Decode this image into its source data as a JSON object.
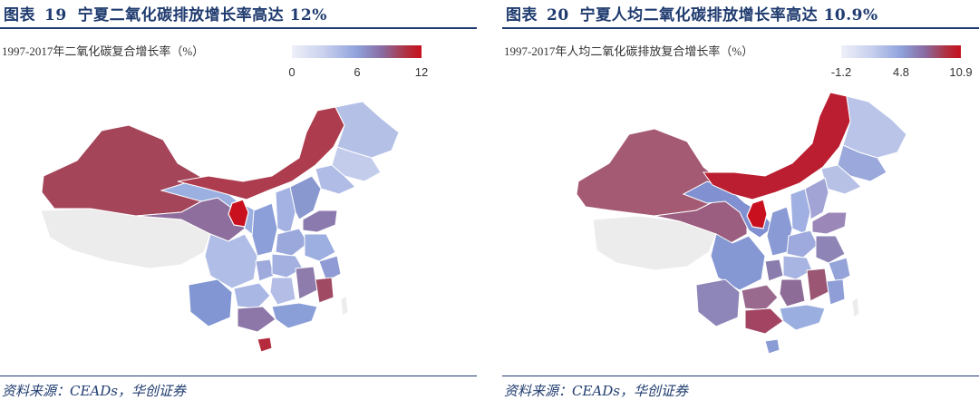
{
  "panels": [
    {
      "title_prefix": "图表",
      "number": "19",
      "title_text": "宁夏二氧化碳排放增长率高达 12%",
      "subtitle": "1997-2017年二氧化碳复合增长率（%）",
      "legend_ticks": [
        "0",
        "6",
        "12"
      ],
      "legend_range": [
        0,
        12
      ],
      "source": "资料来源：CEADs，华创证券"
    },
    {
      "title_prefix": "图表",
      "number": "20",
      "title_text": "宁夏人均二氧化碳排放增长率高达 10.9%",
      "subtitle": "1997-2017年人均二氧化碳排放复合增长率（%）",
      "legend_ticks": [
        "-1.2",
        "4.8",
        "10.9"
      ],
      "legend_range": [
        -1.2,
        10.9
      ],
      "source": "资料来源：CEADs，华创证券"
    }
  ],
  "colors": {
    "navy": "#1f3b6f",
    "legend_low": "#eef0f8",
    "legend_mid": "#8fa2dc",
    "legend_high": "#c8101e",
    "no_data": "#ececec"
  }
}
